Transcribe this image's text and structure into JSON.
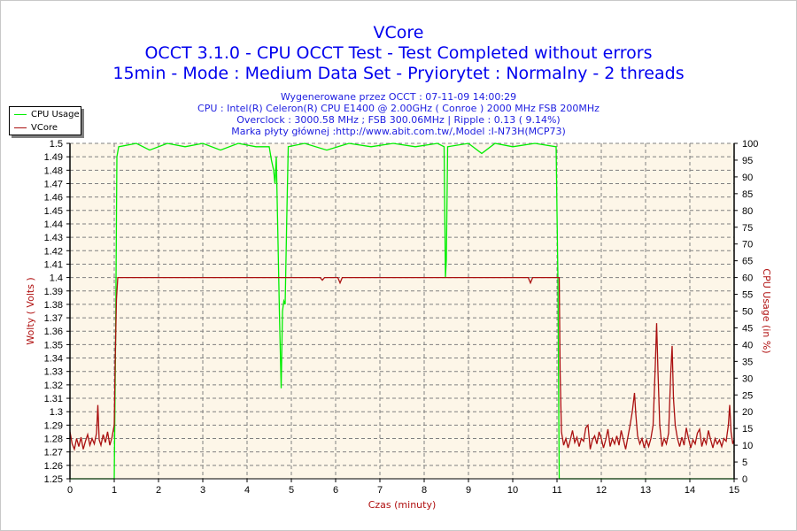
{
  "header": {
    "title": "VCore",
    "subtitle1": "OCCT 3.1.0 - CPU OCCT Test - Test Completed without errors",
    "subtitle2": "15min - Mode : Medium Data Set - Pryiorytet : Normalny - 2 threads",
    "info": [
      "Wygenerowane przez OCCT : 07-11-09 14:00:29",
      "CPU : Intel(R) Celeron(R) CPU E1400 @ 2.00GHz ( Conroe ) 2000 MHz FSB 200MHz",
      "Overclock : 3000.58 MHz ; FSB 300.06MHz | Ripple : 0.13 ( 9.14%)",
      "Marka płyty głównej :http://www.abit.com.tw/,Model :I-N73H(MCP73)"
    ]
  },
  "legend": [
    {
      "label": "CPU Usage",
      "color": "#00ee00"
    },
    {
      "label": "VCore",
      "color": "#aa1010"
    }
  ],
  "chart_data": {
    "type": "line",
    "title": "VCore",
    "xlabel": "Czas (minuty)",
    "ylabel": "Wolty ( Volts )",
    "y2label": "CPU Usage (in %)",
    "xlim": [
      0,
      15
    ],
    "ylim": [
      1.25,
      1.5
    ],
    "y2lim": [
      0,
      100
    ],
    "xticks": [
      "0",
      "1",
      "2",
      "3",
      "4",
      "5",
      "6",
      "7",
      "8",
      "9",
      "10",
      "11",
      "12",
      "13",
      "14",
      "15"
    ],
    "yticks": [
      "1.25",
      "1.26",
      "1.27",
      "1.28",
      "1.29",
      "1.3",
      "1.31",
      "1.32",
      "1.33",
      "1.34",
      "1.35",
      "1.36",
      "1.37",
      "1.38",
      "1.39",
      "1.4",
      "1.41",
      "1.42",
      "1.43",
      "1.44",
      "1.45",
      "1.46",
      "1.47",
      "1.48",
      "1.49",
      "1.5"
    ],
    "y2ticks": [
      "0",
      "5",
      "10",
      "15",
      "20",
      "25",
      "30",
      "35",
      "40",
      "45",
      "50",
      "55",
      "60",
      "65",
      "70",
      "75",
      "80",
      "85",
      "90",
      "95",
      "100"
    ],
    "grid": true,
    "legend_position": "top-left",
    "series": [
      {
        "name": "CPU Usage",
        "axis": "right",
        "color": "#00ee00",
        "points": [
          [
            0,
            0
          ],
          [
            1.0,
            0
          ],
          [
            1.03,
            40
          ],
          [
            1.06,
            96
          ],
          [
            1.1,
            99
          ],
          [
            1.5,
            100
          ],
          [
            1.8,
            98
          ],
          [
            2.2,
            100
          ],
          [
            2.6,
            99
          ],
          [
            3.0,
            100
          ],
          [
            3.4,
            98
          ],
          [
            3.8,
            100
          ],
          [
            4.2,
            99
          ],
          [
            4.5,
            99
          ],
          [
            4.55,
            95
          ],
          [
            4.6,
            92
          ],
          [
            4.63,
            88
          ],
          [
            4.66,
            96
          ],
          [
            4.7,
            70
          ],
          [
            4.73,
            50
          ],
          [
            4.77,
            27
          ],
          [
            4.8,
            50
          ],
          [
            4.83,
            53
          ],
          [
            4.86,
            52
          ],
          [
            4.9,
            80
          ],
          [
            4.93,
            99
          ],
          [
            5.3,
            100
          ],
          [
            5.8,
            98
          ],
          [
            6.3,
            100
          ],
          [
            6.8,
            99
          ],
          [
            7.3,
            100
          ],
          [
            7.8,
            99
          ],
          [
            8.3,
            100
          ],
          [
            8.45,
            99
          ],
          [
            8.48,
            60
          ],
          [
            8.5,
            65
          ],
          [
            8.53,
            99
          ],
          [
            9.0,
            100
          ],
          [
            9.3,
            97
          ],
          [
            9.6,
            100
          ],
          [
            10.0,
            99
          ],
          [
            10.5,
            100
          ],
          [
            10.98,
            99
          ],
          [
            11.02,
            60
          ],
          [
            11.05,
            0
          ],
          [
            15,
            0
          ]
        ]
      },
      {
        "name": "VCore",
        "axis": "left",
        "color": "#aa1010",
        "points": [
          [
            0,
            1.285
          ],
          [
            0.05,
            1.276
          ],
          [
            0.1,
            1.272
          ],
          [
            0.15,
            1.28
          ],
          [
            0.2,
            1.274
          ],
          [
            0.25,
            1.281
          ],
          [
            0.3,
            1.272
          ],
          [
            0.35,
            1.278
          ],
          [
            0.4,
            1.283
          ],
          [
            0.45,
            1.275
          ],
          [
            0.5,
            1.28
          ],
          [
            0.55,
            1.276
          ],
          [
            0.6,
            1.284
          ],
          [
            0.63,
            1.305
          ],
          [
            0.66,
            1.279
          ],
          [
            0.7,
            1.275
          ],
          [
            0.75,
            1.283
          ],
          [
            0.8,
            1.277
          ],
          [
            0.85,
            1.285
          ],
          [
            0.9,
            1.275
          ],
          [
            0.95,
            1.281
          ],
          [
            1.0,
            1.29
          ],
          [
            1.02,
            1.335
          ],
          [
            1.05,
            1.384
          ],
          [
            1.08,
            1.4
          ],
          [
            5.65,
            1.4
          ],
          [
            5.7,
            1.398
          ],
          [
            5.75,
            1.4
          ],
          [
            6.05,
            1.4
          ],
          [
            6.1,
            1.396
          ],
          [
            6.15,
            1.4
          ],
          [
            10.35,
            1.4
          ],
          [
            10.4,
            1.396
          ],
          [
            10.45,
            1.4
          ],
          [
            11.05,
            1.4
          ],
          [
            11.07,
            1.33
          ],
          [
            11.1,
            1.285
          ],
          [
            11.15,
            1.275
          ],
          [
            11.2,
            1.28
          ],
          [
            11.25,
            1.273
          ],
          [
            11.3,
            1.279
          ],
          [
            11.35,
            1.286
          ],
          [
            11.4,
            1.277
          ],
          [
            11.45,
            1.281
          ],
          [
            11.5,
            1.274
          ],
          [
            11.55,
            1.28
          ],
          [
            11.6,
            1.278
          ],
          [
            11.65,
            1.288
          ],
          [
            11.7,
            1.29
          ],
          [
            11.75,
            1.272
          ],
          [
            11.8,
            1.279
          ],
          [
            11.85,
            1.282
          ],
          [
            11.9,
            1.276
          ],
          [
            11.95,
            1.285
          ],
          [
            12.0,
            1.28
          ],
          [
            12.05,
            1.273
          ],
          [
            12.1,
            1.279
          ],
          [
            12.15,
            1.287
          ],
          [
            12.2,
            1.274
          ],
          [
            12.25,
            1.28
          ],
          [
            12.3,
            1.276
          ],
          [
            12.35,
            1.282
          ],
          [
            12.4,
            1.275
          ],
          [
            12.45,
            1.286
          ],
          [
            12.5,
            1.279
          ],
          [
            12.55,
            1.272
          ],
          [
            12.6,
            1.281
          ],
          [
            12.65,
            1.29
          ],
          [
            12.7,
            1.3
          ],
          [
            12.75,
            1.314
          ],
          [
            12.78,
            1.298
          ],
          [
            12.82,
            1.282
          ],
          [
            12.87,
            1.276
          ],
          [
            12.92,
            1.28
          ],
          [
            12.97,
            1.273
          ],
          [
            13.02,
            1.279
          ],
          [
            13.07,
            1.274
          ],
          [
            13.12,
            1.28
          ],
          [
            13.17,
            1.29
          ],
          [
            13.22,
            1.335
          ],
          [
            13.25,
            1.366
          ],
          [
            13.28,
            1.33
          ],
          [
            13.32,
            1.29
          ],
          [
            13.37,
            1.274
          ],
          [
            13.42,
            1.28
          ],
          [
            13.47,
            1.276
          ],
          [
            13.52,
            1.284
          ],
          [
            13.57,
            1.33
          ],
          [
            13.6,
            1.349
          ],
          [
            13.63,
            1.31
          ],
          [
            13.67,
            1.29
          ],
          [
            13.72,
            1.28
          ],
          [
            13.77,
            1.274
          ],
          [
            13.82,
            1.281
          ],
          [
            13.87,
            1.275
          ],
          [
            13.92,
            1.288
          ],
          [
            13.97,
            1.28
          ],
          [
            14.02,
            1.273
          ],
          [
            14.07,
            1.279
          ],
          [
            14.12,
            1.276
          ],
          [
            14.17,
            1.284
          ],
          [
            14.22,
            1.287
          ],
          [
            14.27,
            1.274
          ],
          [
            14.32,
            1.28
          ],
          [
            14.37,
            1.276
          ],
          [
            14.42,
            1.286
          ],
          [
            14.47,
            1.279
          ],
          [
            14.52,
            1.273
          ],
          [
            14.57,
            1.28
          ],
          [
            14.62,
            1.276
          ],
          [
            14.67,
            1.279
          ],
          [
            14.72,
            1.274
          ],
          [
            14.77,
            1.28
          ],
          [
            14.82,
            1.278
          ],
          [
            14.87,
            1.29
          ],
          [
            14.9,
            1.305
          ],
          [
            14.93,
            1.285
          ],
          [
            14.97,
            1.276
          ],
          [
            15,
            1.279
          ]
        ]
      }
    ]
  }
}
